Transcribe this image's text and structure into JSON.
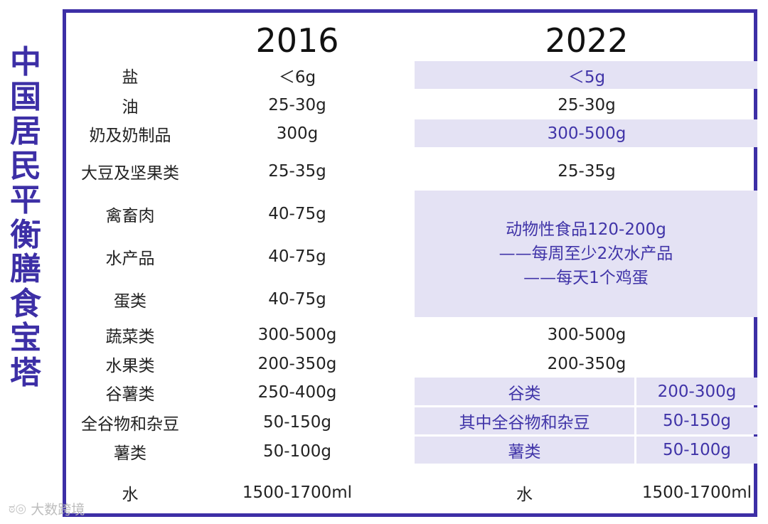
{
  "side_title": [
    "中",
    "国",
    "居",
    "民",
    "平",
    "衡",
    "膳",
    "食",
    "宝",
    "塔"
  ],
  "headers": {
    "y2016": "2016",
    "y2022": "2022"
  },
  "rows": {
    "salt": {
      "name": "盐",
      "v2016": "＜6g",
      "v2022": "＜5g"
    },
    "oil": {
      "name": "油",
      "v2016": "25-30g",
      "v2022": "25-30g"
    },
    "dairy": {
      "name": "奶及奶制品",
      "v2016": "300g",
      "v2022": "300-500g"
    },
    "soy": {
      "name": "大豆及坚果类",
      "v2016": "25-35g",
      "v2022": "25-35g"
    },
    "meat": {
      "name": "禽畜肉",
      "v2016": "40-75g"
    },
    "aquatic": {
      "name": "水产品",
      "v2016": "40-75g"
    },
    "egg": {
      "name": "蛋类",
      "v2016": "40-75g"
    },
    "veg": {
      "name": "蔬菜类",
      "v2016": "300-500g",
      "v2022": "300-500g"
    },
    "fruit": {
      "name": "水果类",
      "v2016": "200-350g",
      "v2022": "200-350g"
    },
    "grain": {
      "name": "谷薯类",
      "v2016": "250-400g",
      "v2022_name": "谷类",
      "v2022": "200-300g"
    },
    "whole": {
      "name": "全谷物和杂豆",
      "v2016": "50-150g",
      "v2022_name": "其中全谷物和杂豆",
      "v2022": "50-150g"
    },
    "tuber": {
      "name": "薯类",
      "v2016": "50-100g",
      "v2022_name": "薯类",
      "v2022": "50-100g"
    },
    "water": {
      "name": "水",
      "v2016": "1500-1700ml",
      "v2022_name": "水",
      "v2022": "1500-1700ml"
    }
  },
  "animal_merged": {
    "line1": "动物性食品120-200g",
    "line2": "——每周至少2次水产品",
    "line3": "——每天1个鸡蛋"
  },
  "watermark": {
    "logo": "ಠ◎",
    "text": "大数跨境"
  },
  "colors": {
    "frame": "#3d2fa6",
    "shade": "#e4e2f4",
    "accent_text": "#4034a8"
  }
}
